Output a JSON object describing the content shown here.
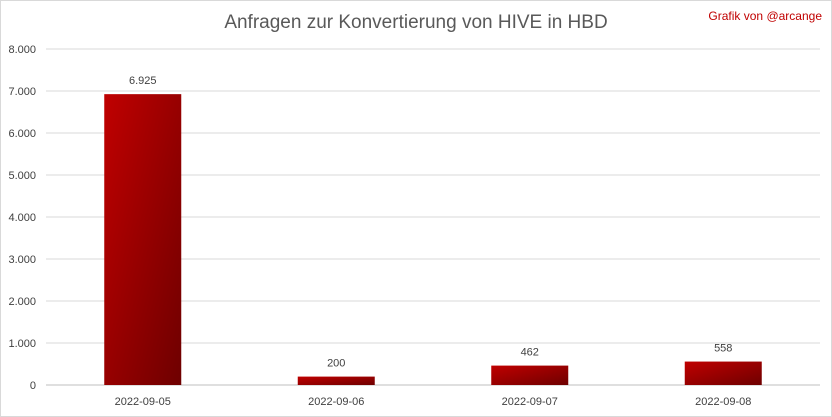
{
  "chart_data": {
    "type": "bar",
    "title": "Anfragen zur Konvertierung von HIVE in HBD",
    "credit": "Grafik von @arcange",
    "categories": [
      "2022-09-05",
      "2022-09-06",
      "2022-09-07",
      "2022-09-08"
    ],
    "values": [
      6925,
      200,
      462,
      558
    ],
    "value_labels": [
      "6.925",
      "200",
      "462",
      "558"
    ],
    "y_ticks": [
      "0",
      "1.000",
      "2.000",
      "3.000",
      "4.000",
      "5.000",
      "6.000",
      "7.000",
      "8.000"
    ],
    "ylim": [
      0,
      8000
    ],
    "grid": true,
    "bar_colors": {
      "light": "#c00000",
      "dark": "#6e0000"
    },
    "xlabel": "",
    "ylabel": ""
  }
}
